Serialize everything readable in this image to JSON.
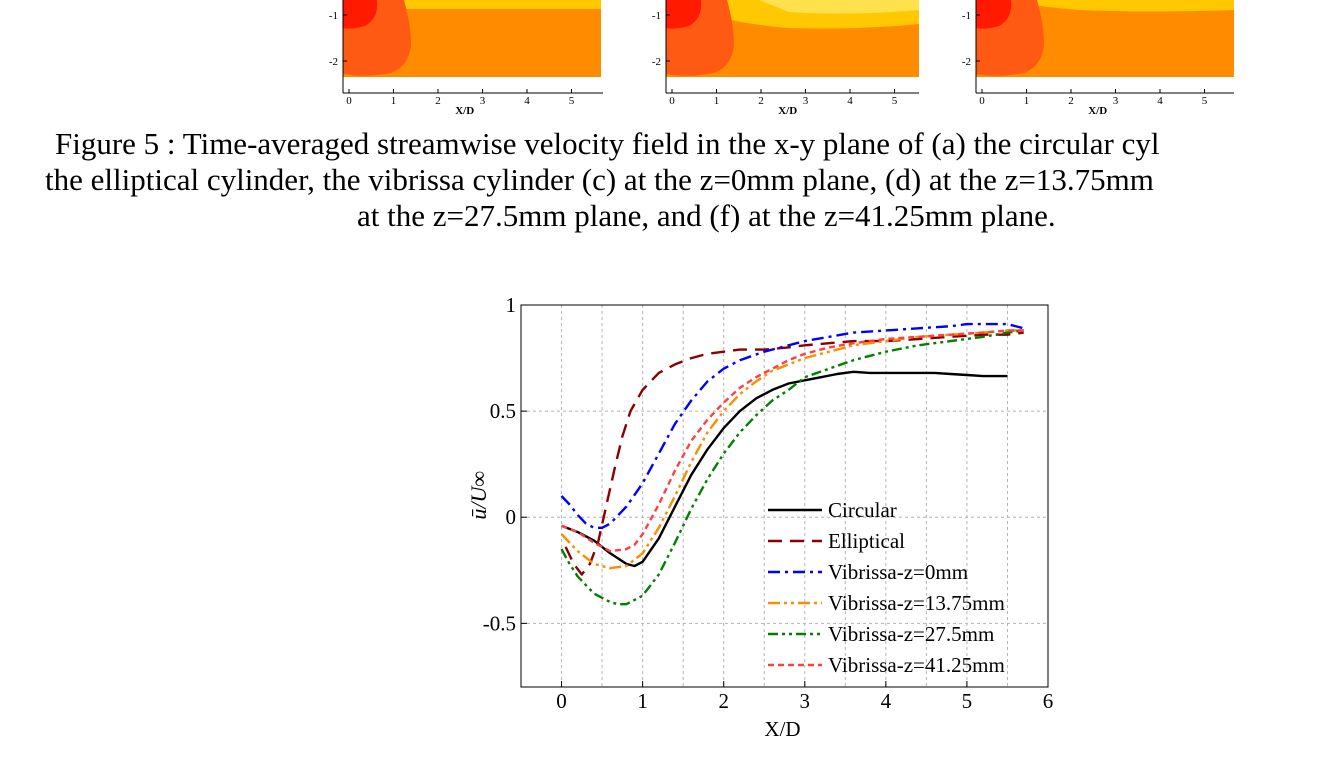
{
  "figure5": {
    "caption_lines": [
      "Figure 5 : Time-averaged streamwise velocity field in the x-y plane of (a) the circular cyl",
      "the elliptical cylinder, the vibrissa cylinder (c) at the z=0mm plane, (d) at the z=13.75mm",
      "at the z=27.5mm plane, and (f) at the z=41.25mm plane."
    ],
    "panel_y_ticks": [
      "-1",
      "-2"
    ],
    "panel_x_ticks": [
      "0",
      "1",
      "2",
      "3",
      "4",
      "5"
    ],
    "panel_x_label": "X/D",
    "colors": {
      "inner": "#ff1a00",
      "mid": "#ff5a14",
      "outer": "#ff8c00",
      "upper": "#ffc800"
    }
  },
  "chart_data": {
    "type": "line",
    "title": "",
    "xlabel": "X/D",
    "ylabel": "ū/U∞",
    "xlim": [
      -0.5,
      6
    ],
    "ylim": [
      -0.8,
      1
    ],
    "xticks": [
      0,
      1,
      2,
      3,
      4,
      5,
      6
    ],
    "xtick_labels": [
      "0",
      "1",
      "2",
      "3",
      "4",
      "5",
      "6"
    ],
    "yticks": [
      -0.5,
      0,
      0.5,
      1
    ],
    "ytick_labels": [
      "-0.5",
      "0",
      "0.5",
      "1"
    ],
    "grid": true,
    "legend_position": "lower-right",
    "series": [
      {
        "name": "Circular",
        "color": "#000000",
        "dash": "",
        "width": 2.4,
        "x": [
          0,
          0.2,
          0.4,
          0.6,
          0.8,
          0.9,
          1.0,
          1.2,
          1.4,
          1.6,
          1.8,
          2.0,
          2.2,
          2.4,
          2.6,
          2.8,
          3.0,
          3.2,
          3.4,
          3.6,
          3.8,
          4.0,
          4.2,
          4.4,
          4.6,
          4.8,
          5.0,
          5.2,
          5.5
        ],
        "y": [
          -0.04,
          -0.07,
          -0.11,
          -0.17,
          -0.22,
          -0.23,
          -0.21,
          -0.1,
          0.05,
          0.2,
          0.32,
          0.42,
          0.5,
          0.56,
          0.6,
          0.63,
          0.645,
          0.66,
          0.675,
          0.685,
          0.68,
          0.68,
          0.68,
          0.68,
          0.68,
          0.675,
          0.67,
          0.665,
          0.665
        ]
      },
      {
        "name": "Elliptical",
        "color": "#8b0000",
        "dash": "14,8",
        "width": 2.4,
        "x": [
          0.05,
          0.15,
          0.25,
          0.35,
          0.45,
          0.55,
          0.65,
          0.75,
          0.85,
          1.0,
          1.2,
          1.4,
          1.6,
          1.8,
          2.0,
          2.2,
          2.5,
          2.8,
          3.0,
          3.3,
          3.6,
          4.0,
          4.4,
          4.8,
          5.2,
          5.5,
          5.7
        ],
        "y": [
          -0.14,
          -0.22,
          -0.27,
          -0.22,
          -0.12,
          0.05,
          0.22,
          0.38,
          0.5,
          0.6,
          0.68,
          0.72,
          0.75,
          0.77,
          0.78,
          0.79,
          0.79,
          0.8,
          0.81,
          0.82,
          0.83,
          0.83,
          0.84,
          0.85,
          0.86,
          0.86,
          0.87
        ]
      },
      {
        "name": "Vibrissa-z=0mm",
        "color": "#0000ff",
        "dash": "12,5,3,5",
        "width": 2.4,
        "x": [
          0,
          0.1,
          0.2,
          0.3,
          0.4,
          0.5,
          0.6,
          0.7,
          0.8,
          1.0,
          1.2,
          1.4,
          1.6,
          1.8,
          2.0,
          2.2,
          2.5,
          2.8,
          3.0,
          3.3,
          3.6,
          4.0,
          4.4,
          4.8,
          5.0,
          5.2,
          5.5,
          5.7
        ],
        "y": [
          0.1,
          0.06,
          0.01,
          -0.03,
          -0.05,
          -0.05,
          -0.03,
          0.01,
          0.05,
          0.16,
          0.3,
          0.44,
          0.55,
          0.64,
          0.7,
          0.74,
          0.78,
          0.81,
          0.83,
          0.85,
          0.87,
          0.88,
          0.89,
          0.9,
          0.91,
          0.91,
          0.91,
          0.89
        ]
      },
      {
        "name": "Vibrissa-z=13.75mm",
        "color": "#ff8c00",
        "dash": "12,4,3,4,3,4",
        "width": 2.4,
        "x": [
          0,
          0.2,
          0.4,
          0.6,
          0.8,
          1.0,
          1.2,
          1.4,
          1.6,
          1.8,
          2.0,
          2.2,
          2.4,
          2.6,
          2.8,
          3.0,
          3.3,
          3.6,
          4.0,
          4.4,
          4.8,
          5.2,
          5.5,
          5.7
        ],
        "y": [
          -0.08,
          -0.16,
          -0.22,
          -0.24,
          -0.23,
          -0.17,
          -0.05,
          0.1,
          0.26,
          0.4,
          0.5,
          0.58,
          0.64,
          0.69,
          0.72,
          0.75,
          0.78,
          0.81,
          0.83,
          0.85,
          0.86,
          0.87,
          0.88,
          0.88
        ]
      },
      {
        "name": "Vibrissa-z=27.5mm",
        "color": "#008000",
        "dash": "10,4,3,4,3,4",
        "width": 2.4,
        "x": [
          0,
          0.1,
          0.2,
          0.4,
          0.6,
          0.7,
          0.8,
          1.0,
          1.2,
          1.4,
          1.6,
          1.8,
          2.0,
          2.2,
          2.4,
          2.6,
          2.8,
          3.0,
          3.3,
          3.6,
          4.0,
          4.4,
          4.8,
          5.2,
          5.5,
          5.7
        ],
        "y": [
          -0.15,
          -0.22,
          -0.28,
          -0.36,
          -0.4,
          -0.41,
          -0.41,
          -0.37,
          -0.27,
          -0.12,
          0.04,
          0.18,
          0.3,
          0.4,
          0.48,
          0.55,
          0.6,
          0.66,
          0.7,
          0.74,
          0.78,
          0.81,
          0.83,
          0.85,
          0.87,
          0.88
        ]
      },
      {
        "name": "Vibrissa-z=41.25mm",
        "color": "#ff4040",
        "dash": "6,4",
        "width": 2.4,
        "x": [
          0,
          0.2,
          0.4,
          0.6,
          0.8,
          0.9,
          1.0,
          1.2,
          1.4,
          1.6,
          1.8,
          2.0,
          2.2,
          2.4,
          2.6,
          2.8,
          3.0,
          3.3,
          3.6,
          4.0,
          4.4,
          4.8,
          5.2,
          5.5,
          5.7
        ],
        "y": [
          -0.04,
          -0.07,
          -0.12,
          -0.16,
          -0.15,
          -0.13,
          -0.08,
          0.06,
          0.22,
          0.36,
          0.46,
          0.54,
          0.61,
          0.66,
          0.7,
          0.74,
          0.77,
          0.8,
          0.82,
          0.84,
          0.85,
          0.86,
          0.87,
          0.88,
          0.88
        ]
      }
    ]
  }
}
